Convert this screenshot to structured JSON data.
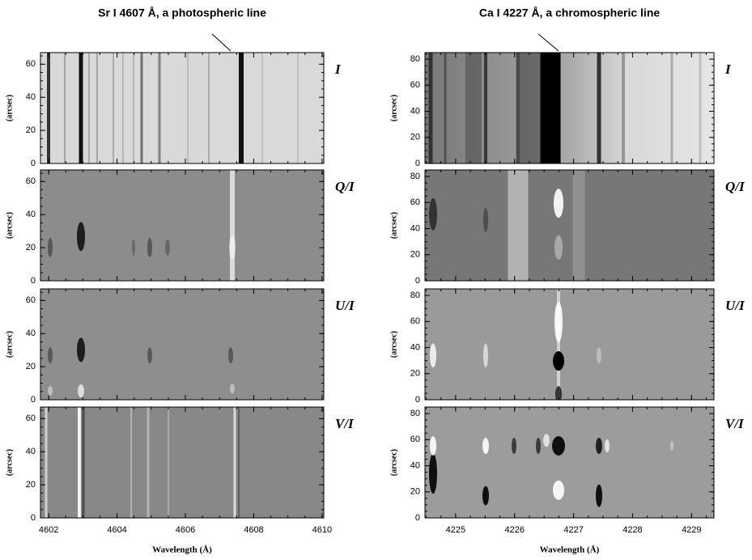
{
  "chart_data": [
    {
      "type": "image",
      "title": "Sr I 4607 Å, a photospheric line",
      "xlabel": "Wavelength (Å)",
      "ylabel": "(arcsec)",
      "xlim": [
        4601.76,
        4610.05
      ],
      "xticks": [
        4602,
        4604,
        4606,
        4608,
        4610
      ],
      "ylim": [
        0,
        67
      ],
      "yticks": [
        0,
        20,
        40,
        60
      ],
      "panels": [
        "I",
        "Q/I",
        "U/I",
        "V/I"
      ]
    },
    {
      "type": "image",
      "title": "Ca I 4227 Å, a chromospheric line",
      "xlabel": "Wavelength (Å)",
      "ylabel": "(arcsec)",
      "xlim": [
        4224.48,
        4229.38
      ],
      "xticks": [
        4225,
        4226,
        4227,
        4228,
        4229
      ],
      "ylim": [
        0,
        85
      ],
      "yticks": [
        0,
        20,
        40,
        60,
        80
      ],
      "panels": [
        "I",
        "Q/I",
        "U/I",
        "V/I"
      ]
    }
  ]
}
